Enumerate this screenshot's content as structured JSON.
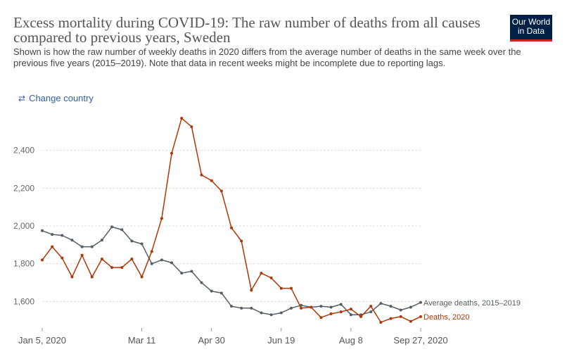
{
  "header": {
    "title": "Excess mortality during COVID-19: The raw number of deaths from all causes compared to previous years, Sweden",
    "subtitle_line1": "Shown is how the raw number of weekly deaths in 2020 differs from the average number of deaths in the same week over the",
    "subtitle_line2": "previous five years (2015–2019). Note that data in recent weeks might be incomplete due to reporting lags.",
    "logo_line1": "Our World",
    "logo_line2": "in Data"
  },
  "controls": {
    "change_country_label": "Change country",
    "change_country_icon": "swap-arrows-icon"
  },
  "colors": {
    "average": "#555d66",
    "deaths2020": "#b13507",
    "logo_bg": "#002147",
    "logo_accent": "#ce261e",
    "link": "#3360a9"
  },
  "chart_data": {
    "type": "line",
    "title": "",
    "xlabel": "",
    "ylabel": "",
    "ylim": [
      1460,
      2600
    ],
    "y_ticks": [
      1600,
      1800,
      2000,
      2200,
      2400
    ],
    "y_tick_labels": [
      "1,600",
      "1,800",
      "2,000",
      "2,200",
      "2,400"
    ],
    "x_tick_labels": [
      {
        "week": 1,
        "label": "Jan 5, 2020"
      },
      {
        "week": 11,
        "label": "Mar 11"
      },
      {
        "week": 18,
        "label": "Apr 30"
      },
      {
        "week": 25,
        "label": "Jun 19"
      },
      {
        "week": 32,
        "label": "Aug 8"
      },
      {
        "week": 39,
        "label": "Sep 27, 2020"
      }
    ],
    "x_unit": "week of 2020",
    "grid": true,
    "series": [
      {
        "name": "Average deaths, 2015–2019",
        "color": "#555d66",
        "x": [
          1,
          2,
          3,
          4,
          5,
          6,
          7,
          8,
          9,
          10,
          11,
          12,
          13,
          14,
          15,
          16,
          17,
          18,
          19,
          20,
          21,
          22,
          23,
          24,
          25,
          26,
          27,
          28,
          29,
          30,
          31,
          32,
          33,
          34,
          35,
          36,
          37,
          38,
          39
        ],
        "values": [
          1975,
          1955,
          1950,
          1925,
          1890,
          1890,
          1925,
          1995,
          1980,
          1920,
          1905,
          1800,
          1820,
          1805,
          1750,
          1760,
          1700,
          1655,
          1645,
          1575,
          1565,
          1565,
          1540,
          1530,
          1540,
          1565,
          1580,
          1570,
          1575,
          1570,
          1585,
          1530,
          1530,
          1545,
          1590,
          1575,
          1555,
          1570,
          1595
        ]
      },
      {
        "name": "Deaths, 2020",
        "color": "#b13507",
        "x": [
          1,
          2,
          3,
          4,
          5,
          6,
          7,
          8,
          9,
          10,
          11,
          12,
          13,
          14,
          15,
          16,
          17,
          18,
          19,
          20,
          21,
          22,
          23,
          24,
          25,
          26,
          27,
          28,
          29,
          30,
          31,
          32,
          33,
          34,
          35,
          36,
          37,
          38,
          39
        ],
        "values": [
          1820,
          1890,
          1830,
          1730,
          1845,
          1730,
          1825,
          1780,
          1780,
          1825,
          1730,
          1865,
          2040,
          2385,
          2570,
          2525,
          2270,
          2240,
          2185,
          1990,
          1920,
          1660,
          1750,
          1725,
          1670,
          1670,
          1565,
          1570,
          1515,
          1535,
          1545,
          1560,
          1520,
          1575,
          1490,
          1510,
          1520,
          1495,
          1520
        ]
      }
    ]
  }
}
